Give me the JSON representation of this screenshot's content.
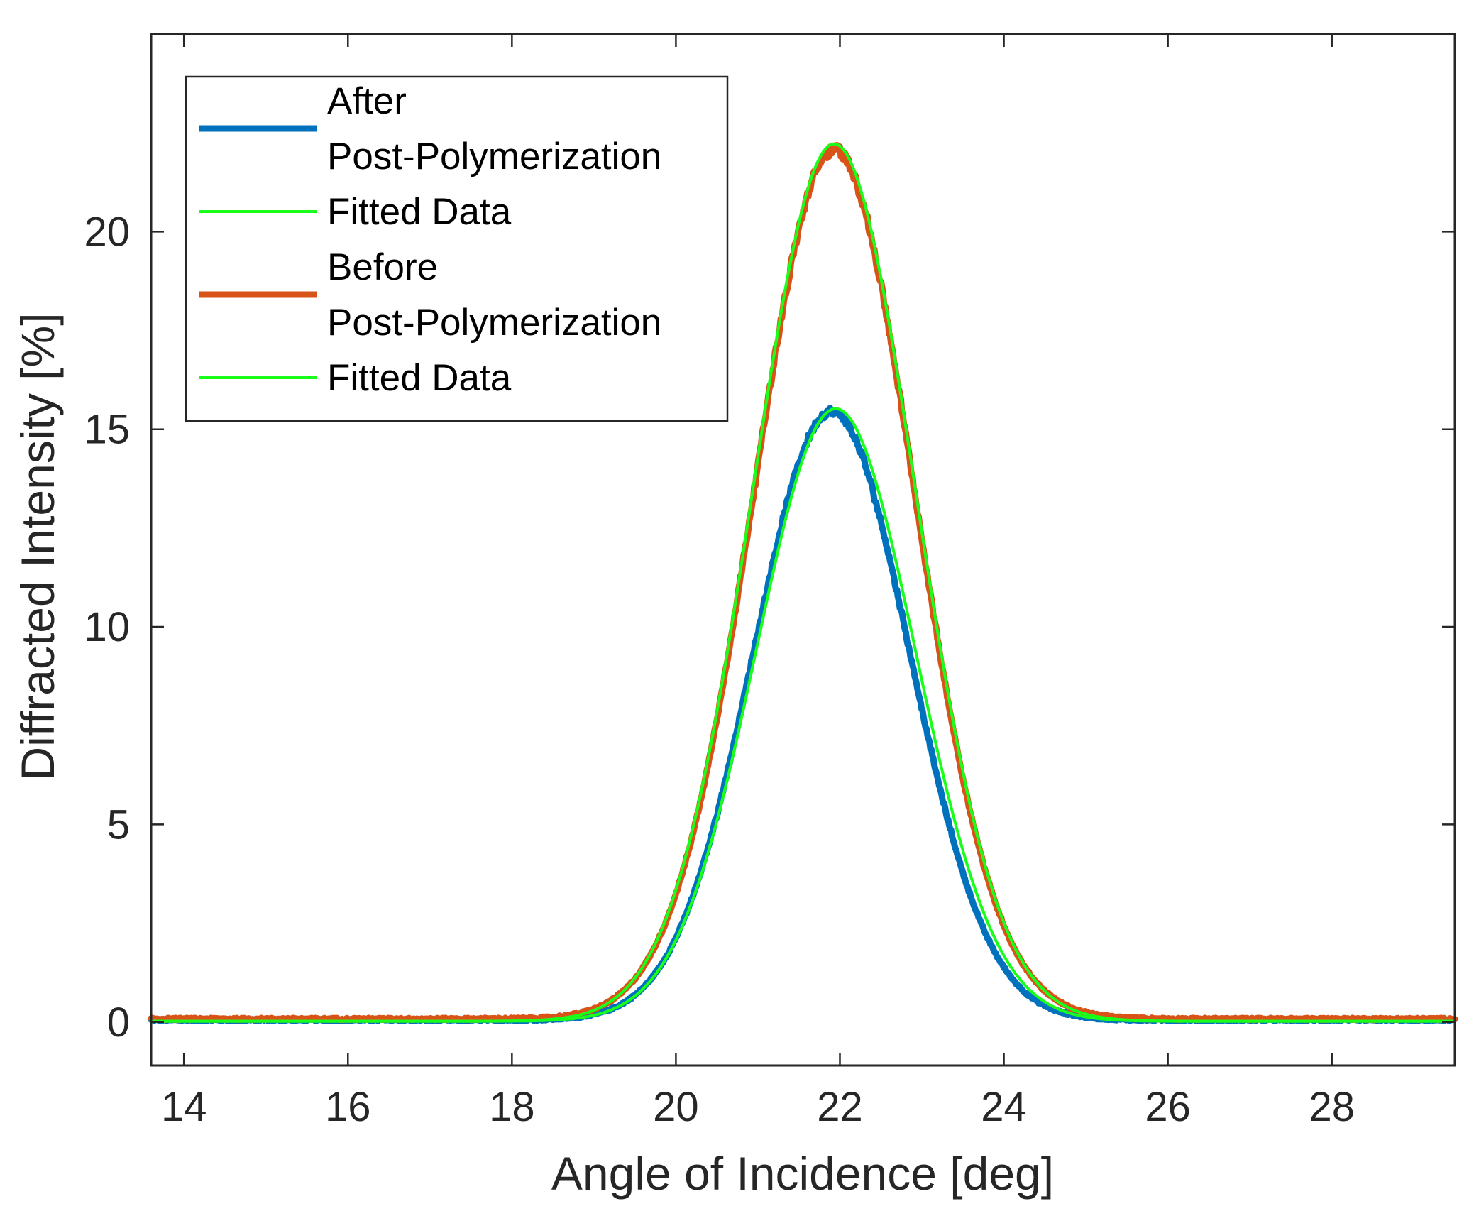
{
  "chart_data": {
    "type": "line",
    "title": "",
    "xlabel": "Angle of Incidence [deg]",
    "ylabel": "Diffracted Intensity [%]",
    "xlim": [
      13.6,
      29.5
    ],
    "ylim": [
      -1.1,
      25
    ],
    "grid": false,
    "legend_position": "top-left",
    "xticks": [
      14,
      16,
      18,
      20,
      22,
      24,
      26,
      28
    ],
    "xtick_labels": [
      "14",
      "16",
      "18",
      "20",
      "22",
      "24",
      "26",
      "28"
    ],
    "yticks": [
      0,
      5,
      10,
      15,
      20
    ],
    "ytick_labels": [
      "0",
      "5",
      "10",
      "15",
      "20"
    ],
    "series": [
      {
        "name": "After Post-Polymerization",
        "legend_lines": [
          "After",
          "Post-Polymerization"
        ],
        "color": "#0072BD",
        "style": "measured",
        "peak": 15.4,
        "center": 21.9,
        "sigma": 0.95,
        "baseline": 0.05
      },
      {
        "name": "Fitted Data",
        "legend_lines": [
          "Fitted Data"
        ],
        "color": "#1AFF1A",
        "style": "fit",
        "peak": 15.5,
        "center": 21.95,
        "sigma": 0.97,
        "baseline": 0.02
      },
      {
        "name": "Before Post-Polymerization",
        "legend_lines": [
          "Before",
          "Post-Polymerization"
        ],
        "color": "#D95319",
        "style": "measured",
        "peak": 22.0,
        "center": 21.93,
        "sigma": 0.98,
        "baseline": 0.08
      },
      {
        "name": "Fitted Data",
        "legend_lines": [
          "Fitted Data"
        ],
        "color": "#1AFF1A",
        "style": "fit",
        "peak": 22.2,
        "center": 21.93,
        "sigma": 0.99,
        "baseline": 0.02
      }
    ]
  }
}
